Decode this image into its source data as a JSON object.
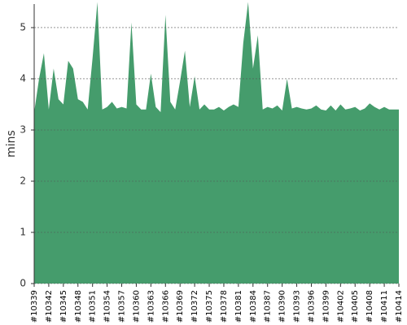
{
  "chart_data": {
    "type": "area",
    "y_label": "mins",
    "color": "#459c6c",
    "categories": [
      "#10339",
      null,
      null,
      "#10342",
      null,
      null,
      "#10345",
      null,
      null,
      "#10348",
      null,
      null,
      "#10351",
      null,
      null,
      "#10354",
      null,
      null,
      "#10357",
      null,
      null,
      "#10360",
      null,
      null,
      "#10363",
      null,
      null,
      "#10366",
      null,
      null,
      "#10369",
      null,
      null,
      "#10372",
      null,
      null,
      "#10375",
      null,
      null,
      "#10378",
      null,
      null,
      "#10381",
      null,
      null,
      "#10384",
      null,
      null,
      "#10387",
      null,
      null,
      "#10390",
      null,
      null,
      "#10393",
      null,
      null,
      "#10396",
      null,
      null,
      "#10399",
      null,
      null,
      "#10402",
      null,
      null,
      "#10405",
      null,
      null,
      "#10408",
      null,
      null,
      "#10411",
      null,
      null,
      "#10414"
    ],
    "values": [
      3.35,
      4.0,
      4.5,
      3.4,
      4.2,
      3.6,
      3.5,
      4.35,
      4.2,
      3.6,
      3.55,
      3.4,
      4.4,
      5.5,
      3.4,
      3.45,
      3.55,
      3.42,
      3.45,
      3.42,
      5.1,
      3.5,
      3.4,
      3.4,
      4.1,
      3.45,
      3.35,
      5.25,
      3.55,
      3.4,
      3.95,
      4.55,
      3.45,
      4.05,
      3.4,
      3.5,
      3.4,
      3.4,
      3.45,
      3.38,
      3.45,
      3.5,
      3.45,
      4.7,
      5.5,
      4.2,
      4.85,
      3.4,
      3.45,
      3.42,
      3.48,
      3.38,
      4.0,
      3.42,
      3.45,
      3.42,
      3.4,
      3.42,
      3.48,
      3.4,
      3.38,
      3.48,
      3.38,
      3.5,
      3.4,
      3.42,
      3.45,
      3.38,
      3.42,
      3.52,
      3.45,
      3.4,
      3.45,
      3.4,
      3.4,
      3.4
    ],
    "ylim": [
      0,
      5.46
    ],
    "yticks": [
      0,
      1,
      2,
      3,
      4,
      5
    ],
    "grid": true
  }
}
